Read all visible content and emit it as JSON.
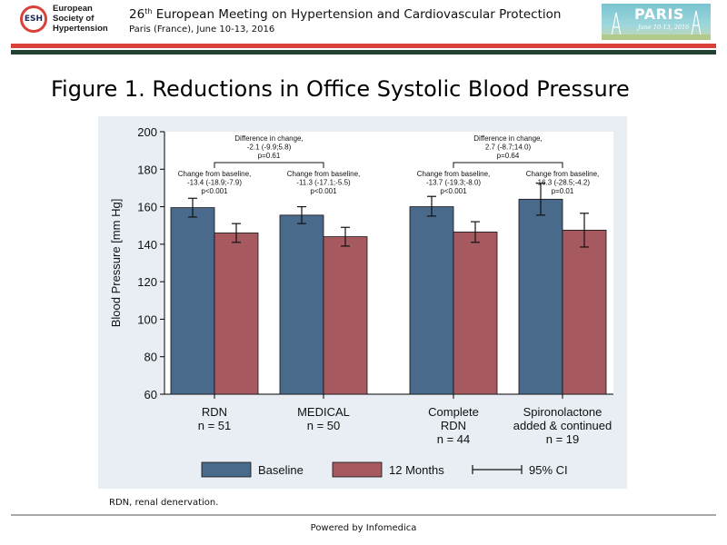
{
  "header": {
    "logo": {
      "abbr": "ESH",
      "name_lines": [
        "European",
        "Society of",
        "Hypertension"
      ],
      "ring_color_hex": "#d9413a"
    },
    "conference": {
      "number": "26",
      "ordinal": "th",
      "title_rest": " European Meeting on Hypertension and Cardiovascular Protection",
      "subtitle": "Paris (France), June 10-13, 2016"
    },
    "badge": {
      "title": "PARIS",
      "date": "June 10-13, 2016",
      "icon": "paris-eiffel-icon"
    },
    "rule_colors": {
      "red": "#d9413a",
      "dark": "#244032"
    }
  },
  "figure_title": "Figure 1. Reductions in Office Systolic Blood Pressure",
  "chart_data": {
    "type": "bar",
    "ylabel": "Blood Pressure [mm Hg]",
    "ylim": [
      60,
      200
    ],
    "yticks": [
      60,
      80,
      100,
      120,
      140,
      160,
      180,
      200
    ],
    "grid": false,
    "legend_position": "bottom",
    "categories": [
      {
        "lines": [
          "RDN",
          "n = 51"
        ]
      },
      {
        "lines": [
          "MEDICAL",
          "n = 50"
        ]
      },
      {
        "lines": [
          "Complete",
          "RDN",
          "n = 44"
        ]
      },
      {
        "lines": [
          "Spironolactone",
          "added & continued",
          "n = 19"
        ]
      }
    ],
    "series": [
      {
        "name": "Baseline",
        "color_hex": "#4a6a8c",
        "values": [
          159.5,
          155.5,
          160,
          164
        ],
        "ci": [
          [
            154.5,
            164.5
          ],
          [
            151,
            160
          ],
          [
            155,
            165.5
          ],
          [
            155.5,
            172.5
          ]
        ]
      },
      {
        "name": "12 Months",
        "color_hex": "#a65a60",
        "values": [
          146,
          144,
          146.5,
          147.5
        ],
        "ci": [
          [
            141,
            151
          ],
          [
            139,
            149
          ],
          [
            141,
            152
          ],
          [
            138.5,
            156.5
          ]
        ]
      }
    ],
    "legend": {
      "baseline_label": "Baseline",
      "months_label": "12 Months",
      "ci_label": "95% CI",
      "ci_icon": "ci-bar-icon"
    },
    "annotations": {
      "change": [
        {
          "category": 0,
          "lines": [
            "Change from baseline,",
            "-13.4 (-18.9;-7.9)",
            "p<0.001"
          ]
        },
        {
          "category": 1,
          "lines": [
            "Change from baseline,",
            "-11.3 (-17.1;-5.5)",
            "p<0.001"
          ]
        },
        {
          "category": 2,
          "lines": [
            "Change from baseline,",
            "-13.7 (-19.3;-8.0)",
            "p<0.001"
          ]
        },
        {
          "category": 3,
          "lines": [
            "Change from baseline,",
            "-16.3 (-28.5;-4.2)",
            "p=0.01"
          ]
        }
      ],
      "difference": [
        {
          "between": [
            0,
            1
          ],
          "lines": [
            "Difference in change,",
            "-2.1 (-9.9;5.8)",
            "p=0.61"
          ]
        },
        {
          "between": [
            2,
            3
          ],
          "lines": [
            "Difference in change,",
            "2.7 (-8.7;14.0)",
            "p=0.64"
          ]
        }
      ]
    }
  },
  "footnote": "RDN, renal denervation.",
  "footer": "Powered by Infomedica"
}
